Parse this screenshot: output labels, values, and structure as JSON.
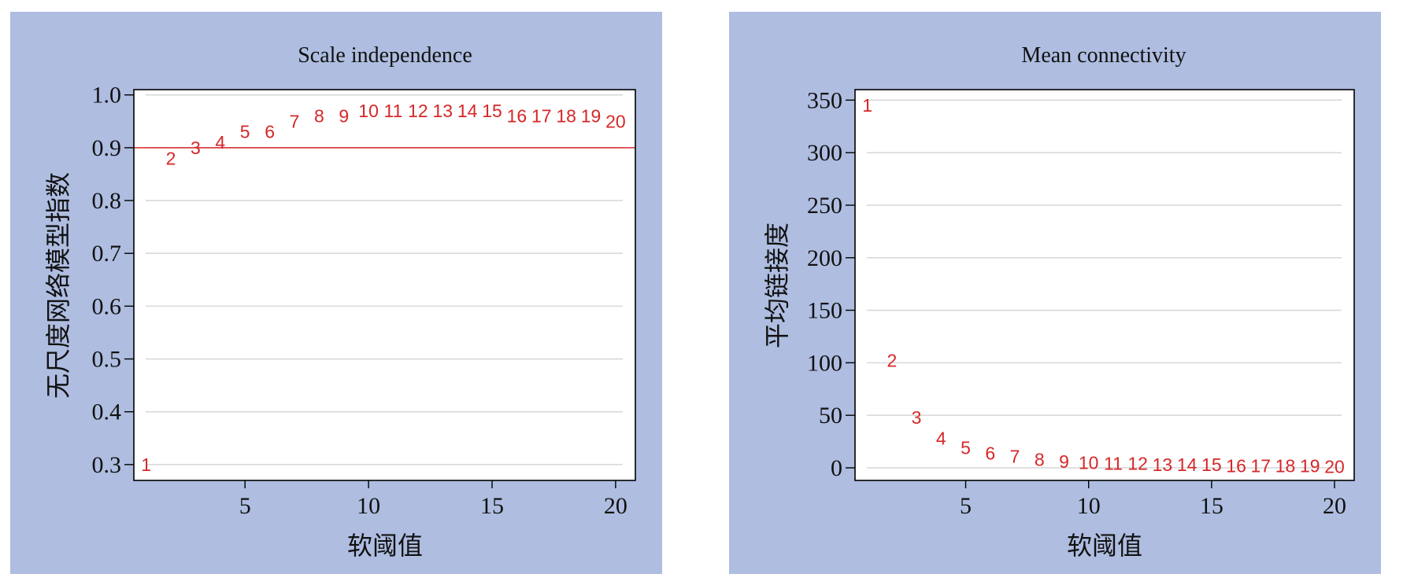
{
  "colors": {
    "panel_background": "#aebde0",
    "plot_background": "#ffffff",
    "grid": "#d9d9d9",
    "point_labels": "#d62728",
    "threshold_line": "#d62728",
    "frame": "#000000"
  },
  "chart_data": [
    {
      "type": "scatter",
      "marker": "text labels (power values)",
      "title": "Scale independence",
      "xlabel": "软阈值",
      "ylabel": "无尺度网络模型指数",
      "xlim": [
        0.5,
        20.8
      ],
      "ylim": [
        0.27,
        1.01
      ],
      "xticks": [
        5,
        10,
        15,
        20
      ],
      "yticks": [
        0.3,
        0.4,
        0.5,
        0.6,
        0.7,
        0.8,
        0.9,
        1.0
      ],
      "ytick_labels": [
        "0.3",
        "0.4",
        "0.5",
        "0.6",
        "0.7",
        "0.8",
        "0.9",
        "1.0"
      ],
      "grid": "horizontal",
      "threshold_line": 0.9,
      "points": [
        {
          "x": 1,
          "y": 0.3,
          "label": "1"
        },
        {
          "x": 2,
          "y": 0.88,
          "label": "2"
        },
        {
          "x": 3,
          "y": 0.9,
          "label": "3"
        },
        {
          "x": 4,
          "y": 0.91,
          "label": "4"
        },
        {
          "x": 5,
          "y": 0.93,
          "label": "5"
        },
        {
          "x": 6,
          "y": 0.93,
          "label": "6"
        },
        {
          "x": 7,
          "y": 0.95,
          "label": "7"
        },
        {
          "x": 8,
          "y": 0.96,
          "label": "8"
        },
        {
          "x": 9,
          "y": 0.96,
          "label": "9"
        },
        {
          "x": 10,
          "y": 0.97,
          "label": "10"
        },
        {
          "x": 11,
          "y": 0.97,
          "label": "11"
        },
        {
          "x": 12,
          "y": 0.97,
          "label": "12"
        },
        {
          "x": 13,
          "y": 0.97,
          "label": "13"
        },
        {
          "x": 14,
          "y": 0.97,
          "label": "14"
        },
        {
          "x": 15,
          "y": 0.97,
          "label": "15"
        },
        {
          "x": 16,
          "y": 0.96,
          "label": "16"
        },
        {
          "x": 17,
          "y": 0.96,
          "label": "17"
        },
        {
          "x": 18,
          "y": 0.96,
          "label": "18"
        },
        {
          "x": 19,
          "y": 0.96,
          "label": "19"
        },
        {
          "x": 20,
          "y": 0.95,
          "label": "20"
        }
      ]
    },
    {
      "type": "scatter",
      "marker": "text labels (power values)",
      "title": "Mean connectivity",
      "xlabel": "软阈值",
      "ylabel": "平均链接度",
      "xlim": [
        0.5,
        20.8
      ],
      "ylim": [
        -12,
        360
      ],
      "xticks": [
        5,
        10,
        15,
        20
      ],
      "yticks": [
        0,
        50,
        100,
        150,
        200,
        250,
        300,
        350
      ],
      "ytick_labels": [
        "0",
        "50",
        "100",
        "150",
        "200",
        "250",
        "300",
        "350"
      ],
      "grid": "horizontal",
      "points": [
        {
          "x": 1,
          "y": 345,
          "label": "1"
        },
        {
          "x": 2,
          "y": 102,
          "label": "2"
        },
        {
          "x": 3,
          "y": 48,
          "label": "3"
        },
        {
          "x": 4,
          "y": 28,
          "label": "4"
        },
        {
          "x": 5,
          "y": 19,
          "label": "5"
        },
        {
          "x": 6,
          "y": 14,
          "label": "6"
        },
        {
          "x": 7,
          "y": 11,
          "label": "7"
        },
        {
          "x": 8,
          "y": 8,
          "label": "8"
        },
        {
          "x": 9,
          "y": 6,
          "label": "9"
        },
        {
          "x": 10,
          "y": 5,
          "label": "10"
        },
        {
          "x": 11,
          "y": 4,
          "label": "11"
        },
        {
          "x": 12,
          "y": 4,
          "label": "12"
        },
        {
          "x": 13,
          "y": 3,
          "label": "13"
        },
        {
          "x": 14,
          "y": 3,
          "label": "14"
        },
        {
          "x": 15,
          "y": 3,
          "label": "15"
        },
        {
          "x": 16,
          "y": 2,
          "label": "16"
        },
        {
          "x": 17,
          "y": 2,
          "label": "17"
        },
        {
          "x": 18,
          "y": 2,
          "label": "18"
        },
        {
          "x": 19,
          "y": 2,
          "label": "19"
        },
        {
          "x": 20,
          "y": 1,
          "label": "20"
        }
      ]
    }
  ]
}
